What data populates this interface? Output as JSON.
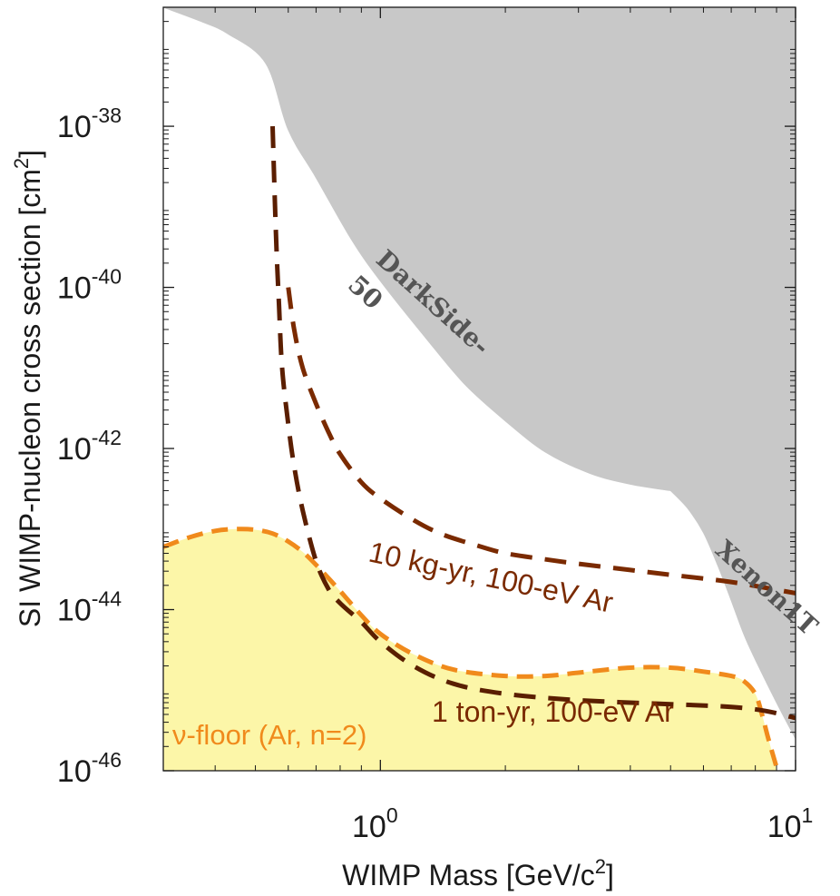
{
  "chart_data": {
    "type": "line",
    "xlabel": "WIMP Mass [GeV/c",
    "xlabel_sup": "2",
    "xlabel_end": "]",
    "ylabel": "SI WIMP-nucleon cross section [cm",
    "ylabel_sup": "2",
    "ylabel_end": "]",
    "x_scale": "log",
    "y_scale": "log",
    "xlim": [
      0.3,
      10
    ],
    "ylim": [
      1e-46,
      3e-37
    ],
    "x_ticks": [
      {
        "value": 1,
        "base": "10",
        "exp": "0"
      },
      {
        "value": 10,
        "base": "10",
        "exp": "1"
      }
    ],
    "y_ticks": [
      {
        "value": 1e-38,
        "base": "10",
        "exp": "-38"
      },
      {
        "value": 1e-40,
        "base": "10",
        "exp": "-40"
      },
      {
        "value": 1e-42,
        "base": "10",
        "exp": "-42"
      },
      {
        "value": 1e-44,
        "base": "10",
        "exp": "-44"
      },
      {
        "value": 1e-46,
        "base": "10",
        "exp": "-46"
      }
    ],
    "grid": false,
    "excluded_regions": [
      {
        "name": "DarkSide-50",
        "label_line1": "DarkSide-",
        "label_line2": "50",
        "color": "#c8c8c8",
        "x": [
          0.3,
          0.37,
          0.43,
          0.53,
          0.6,
          0.7,
          0.85,
          1.0,
          1.3,
          1.6,
          2.0,
          2.5,
          3.2,
          4.0,
          5.0
        ],
        "y": [
          3e-37,
          2e-37,
          1.4e-37,
          6e-38,
          9e-39,
          2.3e-39,
          4e-40,
          1.2e-40,
          2.2e-41,
          6.2e-42,
          2.2e-42,
          9e-43,
          4.9e-43,
          3.6e-43,
          3e-43
        ]
      },
      {
        "name": "Xenon1T",
        "label_line1": "Xenon1T",
        "color": "#c8c8c8",
        "x": [
          5.0,
          5.5,
          6.0,
          6.5,
          7.0,
          7.5,
          8.0,
          9.0,
          10.0
        ],
        "y": [
          3e-43,
          1.8e-43,
          9e-44,
          3.5e-44,
          1.3e-44,
          5e-45,
          2.4e-45,
          7e-46,
          2.5e-46
        ]
      }
    ],
    "series": [
      {
        "name": "10 kg-yr, 100-eV Ar",
        "style": "dashed",
        "color": "#7a2a00",
        "x": [
          0.6,
          0.62,
          0.65,
          0.7,
          0.75,
          0.8,
          0.9,
          1.0,
          1.2,
          1.4,
          1.7,
          2.0,
          2.5,
          3.0,
          4.0,
          5.0,
          7.0,
          10.0
        ],
        "y": [
          1e-40,
          3e-41,
          1e-41,
          3.6e-42,
          1.6e-42,
          8.5e-43,
          3.8e-43,
          2.4e-43,
          1.3e-43,
          8.7e-44,
          6.3e-44,
          5e-44,
          4.2e-44,
          3.7e-44,
          3.1e-44,
          2.7e-44,
          2.2e-44,
          1.6e-44
        ]
      },
      {
        "name": "1 ton-yr, 100-eV Ar",
        "style": "dashed",
        "color": "#5a1e00",
        "x": [
          0.55,
          0.56,
          0.57,
          0.58,
          0.6,
          0.62,
          0.65,
          0.7,
          0.75,
          0.8,
          0.9,
          1.0,
          1.2,
          1.5,
          2.0,
          3.0,
          5.0,
          7.0,
          8.5,
          10.0
        ],
        "y": [
          1e-38,
          5e-40,
          6e-41,
          1e-41,
          2e-42,
          6e-43,
          1.7e-43,
          4e-44,
          1.8e-44,
          1.2e-44,
          7e-45,
          4e-45,
          2e-45,
          1.2e-45,
          9e-46,
          7.5e-46,
          6.7e-46,
          6.2e-46,
          5.5e-46,
          4.5e-46
        ]
      }
    ],
    "floor": {
      "name": "ν-floor (Ar, n=2)",
      "style": "dashed",
      "edge_color": "#f08a1c",
      "fill_color": "#fcf6a8",
      "x": [
        0.3,
        0.35,
        0.4,
        0.45,
        0.5,
        0.55,
        0.6,
        0.65,
        0.7,
        0.8,
        0.9,
        1.0,
        1.2,
        1.5,
        2.0,
        2.5,
        3.0,
        4.0,
        5.0,
        6.0,
        7.0,
        7.5,
        8.0,
        8.3,
        8.6,
        9.0
      ],
      "y": [
        6e-44,
        8e-44,
        9.5e-44,
        1e-43,
        9.8e-44,
        8.8e-44,
        7e-44,
        5.2e-44,
        3.6e-44,
        1.7e-44,
        8.5e-45,
        5e-45,
        2.8e-45,
        1.8e-45,
        1.5e-45,
        1.5e-45,
        1.65e-45,
        1.9e-45,
        1.9e-45,
        1.7e-45,
        1.5e-45,
        1.3e-45,
        9e-46,
        5e-46,
        2.5e-46,
        1.1e-46
      ]
    }
  }
}
